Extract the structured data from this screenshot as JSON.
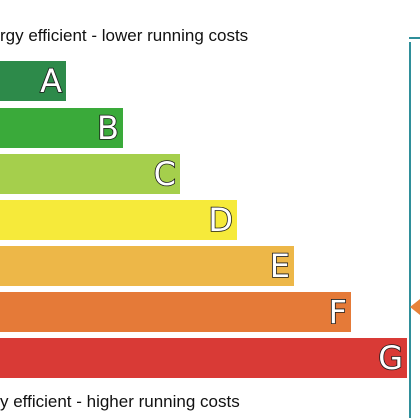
{
  "captions": {
    "top": "rgy efficient - lower running costs",
    "bottom": "y efficient - higher running costs"
  },
  "bands": [
    {
      "letter": "A",
      "color": "#2d8a4a"
    },
    {
      "letter": "B",
      "color": "#3aaa3a"
    },
    {
      "letter": "C",
      "color": "#a5cf4c"
    },
    {
      "letter": "D",
      "color": "#f6ea3a"
    },
    {
      "letter": "E",
      "color": "#edb748"
    },
    {
      "letter": "F",
      "color": "#e57a38"
    },
    {
      "letter": "G",
      "color": "#d93a36"
    }
  ],
  "panel": {
    "border_color": "#2f8f9a",
    "marker_color": "#e8833a"
  }
}
